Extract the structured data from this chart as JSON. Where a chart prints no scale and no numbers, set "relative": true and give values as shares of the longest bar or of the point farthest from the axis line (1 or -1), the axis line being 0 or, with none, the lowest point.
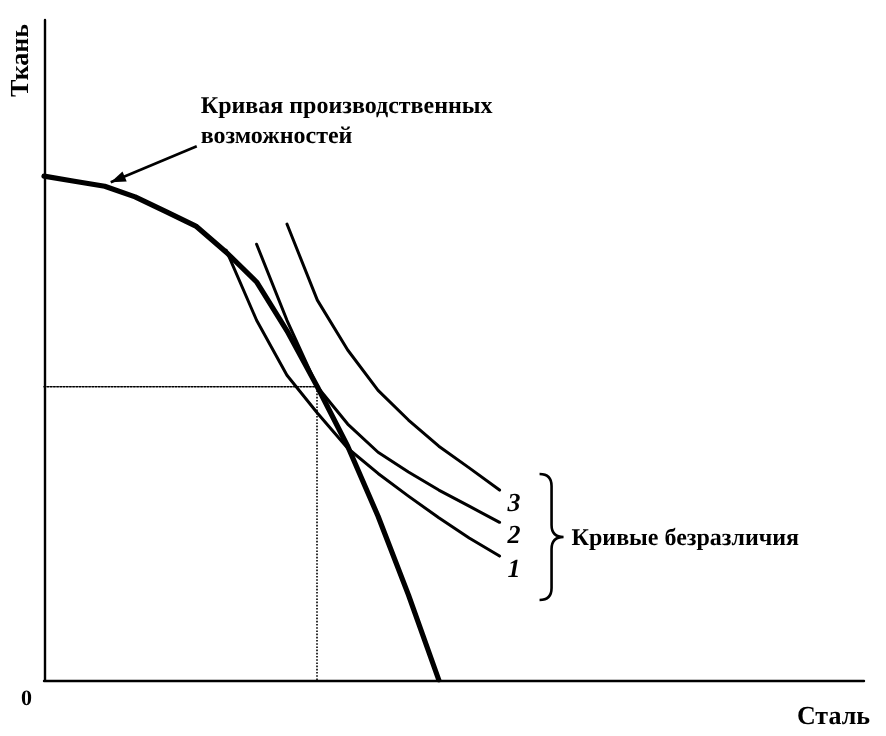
{
  "chart_data": {
    "type": "line",
    "relative": true,
    "xlabel": "Сталь",
    "ylabel": "Ткань",
    "marker": "none",
    "categories": [
      null,
      null,
      null,
      null,
      null,
      null,
      null,
      null,
      null,
      null,
      null,
      null,
      null,
      null,
      null,
      null,
      null,
      null,
      null,
      null,
      null,
      null,
      null,
      null,
      null,
      null,
      null,
      null
    ],
    "annotations": [
      "Кривая производственных возможностей",
      "Кривые безразличия",
      "0"
    ],
    "series": [
      {
        "color": "#000000",
        "values": [
          1,
          0.99,
          0.98,
          0.959,
          0.93,
          0.901,
          0.849,
          0.79,
          0.693,
          0.582,
          0.464,
          0.325,
          0.169,
          0,
          null,
          null,
          null,
          null,
          null,
          null,
          null,
          null,
          null,
          null,
          null,
          null,
          null,
          null
        ]
      },
      {
        "name": "1",
        "color": "#000000",
        "values": [
          null,
          null,
          null,
          null,
          null,
          null,
          0.853,
          0.714,
          0.605,
          0.53,
          0.46,
          0.41,
          0.365,
          0.322,
          0.282,
          0.246,
          null,
          null,
          null,
          null,
          null,
          null,
          null,
          null,
          null,
          null,
          null,
          null
        ]
      },
      {
        "name": "2",
        "color": "#000000",
        "values": [
          null,
          null,
          null,
          null,
          null,
          null,
          null,
          0.865,
          0.714,
          0.582,
          0.508,
          0.452,
          0.413,
          0.377,
          0.345,
          0.313,
          null,
          null,
          null,
          null,
          null,
          null,
          null,
          null,
          null,
          null,
          null,
          null
        ]
      },
      {
        "name": "3",
        "color": "#000000",
        "values": [
          null,
          null,
          null,
          null,
          null,
          null,
          null,
          null,
          0.905,
          0.754,
          0.655,
          0.575,
          0.516,
          0.464,
          0.421,
          0.377,
          null,
          null,
          null,
          null,
          null,
          null,
          null,
          null,
          null,
          null,
          null,
          null
        ]
      },
      {
        "color": "#000000",
        "line_style": "dotted",
        "values": [
          0.582,
          0.582,
          0.582,
          0.582,
          0.582,
          0.582,
          0.582,
          0.582,
          0.582,
          0.582,
          null,
          null,
          null,
          null,
          null,
          null,
          null,
          null,
          null,
          null,
          null,
          null,
          null,
          null,
          null,
          null,
          null,
          null
        ]
      }
    ]
  }
}
